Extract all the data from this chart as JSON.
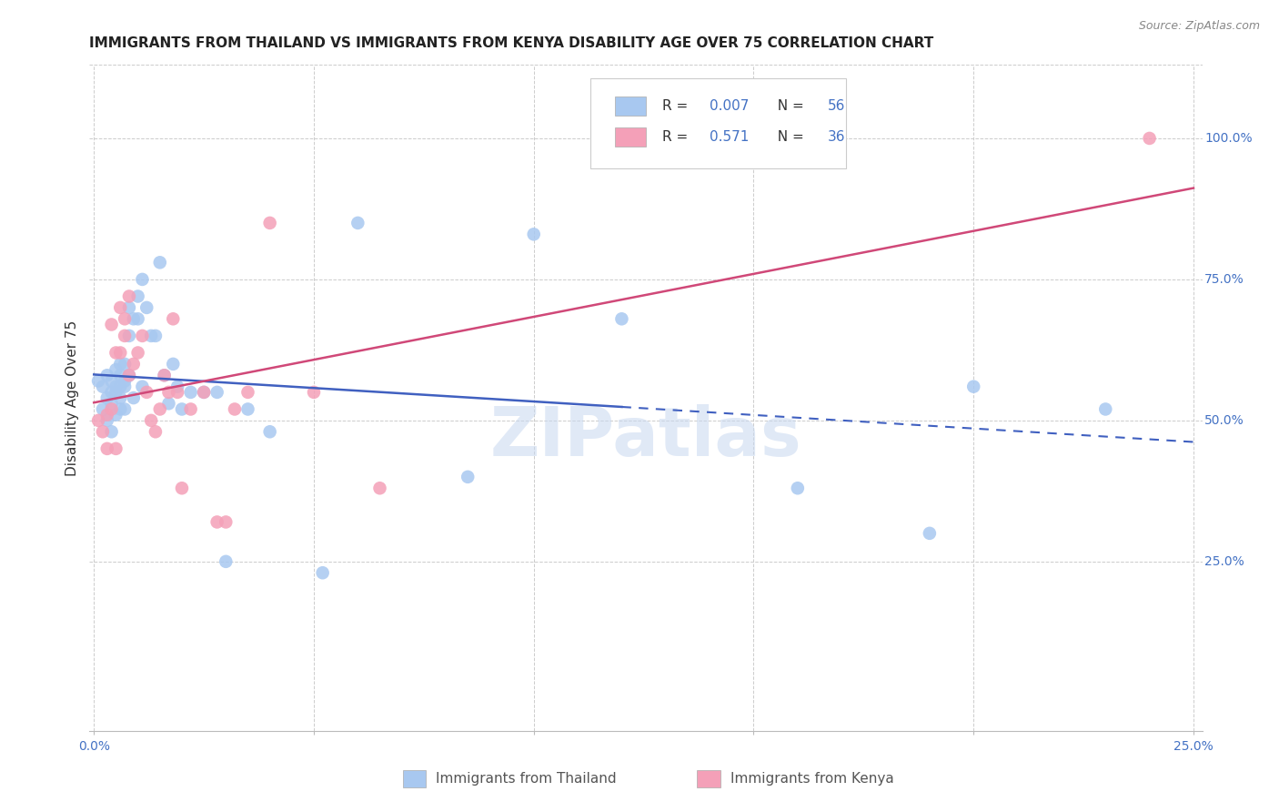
{
  "title": "IMMIGRANTS FROM THAILAND VS IMMIGRANTS FROM KENYA DISABILITY AGE OVER 75 CORRELATION CHART",
  "source": "Source: ZipAtlas.com",
  "ylabel": "Disability Age Over 75",
  "legend_label1": "Immigrants from Thailand",
  "legend_label2": "Immigrants from Kenya",
  "R1": 0.007,
  "N1": 56,
  "R2": 0.571,
  "N2": 36,
  "xlim": [
    -0.001,
    0.252
  ],
  "ylim": [
    -0.05,
    1.13
  ],
  "right_yticks": [
    0.25,
    0.5,
    0.75,
    1.0
  ],
  "right_yticklabels": [
    "25.0%",
    "50.0%",
    "75.0%",
    "100.0%"
  ],
  "bottom_xticks": [
    0.0,
    0.05,
    0.1,
    0.15,
    0.2,
    0.25
  ],
  "bottom_xticklabels": [
    "0.0%",
    "",
    "",
    "",
    "",
    "25.0%"
  ],
  "color_thailand": "#a8c8f0",
  "color_kenya": "#f4a0b8",
  "color_line_thailand": "#4060c0",
  "color_line_kenya": "#d04878",
  "background": "#ffffff",
  "grid_color": "#cccccc",
  "thailand_x": [
    0.001,
    0.002,
    0.002,
    0.003,
    0.003,
    0.003,
    0.004,
    0.004,
    0.004,
    0.004,
    0.005,
    0.005,
    0.005,
    0.005,
    0.006,
    0.006,
    0.006,
    0.006,
    0.006,
    0.007,
    0.007,
    0.007,
    0.007,
    0.008,
    0.008,
    0.008,
    0.009,
    0.009,
    0.01,
    0.01,
    0.011,
    0.011,
    0.012,
    0.013,
    0.014,
    0.015,
    0.016,
    0.017,
    0.018,
    0.019,
    0.02,
    0.022,
    0.025,
    0.028,
    0.03,
    0.035,
    0.04,
    0.052,
    0.06,
    0.085,
    0.1,
    0.12,
    0.16,
    0.19,
    0.2,
    0.23
  ],
  "thailand_y": [
    0.57,
    0.56,
    0.52,
    0.58,
    0.54,
    0.5,
    0.57,
    0.53,
    0.55,
    0.48,
    0.59,
    0.55,
    0.51,
    0.56,
    0.6,
    0.56,
    0.52,
    0.58,
    0.54,
    0.6,
    0.56,
    0.52,
    0.57,
    0.7,
    0.65,
    0.58,
    0.68,
    0.54,
    0.72,
    0.68,
    0.75,
    0.56,
    0.7,
    0.65,
    0.65,
    0.78,
    0.58,
    0.53,
    0.6,
    0.56,
    0.52,
    0.55,
    0.55,
    0.55,
    0.25,
    0.52,
    0.48,
    0.23,
    0.85,
    0.4,
    0.83,
    0.68,
    0.38,
    0.3,
    0.56,
    0.52
  ],
  "kenya_x": [
    0.001,
    0.002,
    0.003,
    0.003,
    0.004,
    0.004,
    0.005,
    0.005,
    0.006,
    0.006,
    0.007,
    0.007,
    0.008,
    0.008,
    0.009,
    0.01,
    0.011,
    0.012,
    0.013,
    0.014,
    0.015,
    0.016,
    0.017,
    0.018,
    0.019,
    0.02,
    0.022,
    0.025,
    0.028,
    0.03,
    0.032,
    0.035,
    0.04,
    0.05,
    0.065,
    0.24
  ],
  "kenya_y": [
    0.5,
    0.48,
    0.51,
    0.45,
    0.52,
    0.67,
    0.62,
    0.45,
    0.7,
    0.62,
    0.65,
    0.68,
    0.72,
    0.58,
    0.6,
    0.62,
    0.65,
    0.55,
    0.5,
    0.48,
    0.52,
    0.58,
    0.55,
    0.68,
    0.55,
    0.38,
    0.52,
    0.55,
    0.32,
    0.32,
    0.52,
    0.55,
    0.85,
    0.55,
    0.38,
    1.0
  ],
  "thailand_line_x": [
    0.0,
    0.25
  ],
  "thailand_line_solid_end": 0.12,
  "kenya_line_x": [
    0.0,
    0.25
  ],
  "watermark": "ZIPatlas",
  "watermark_color": "#c8d8f0",
  "title_fontsize": 11,
  "axis_label_fontsize": 11,
  "tick_fontsize": 10,
  "legend_fontsize": 11,
  "source_fontsize": 9
}
